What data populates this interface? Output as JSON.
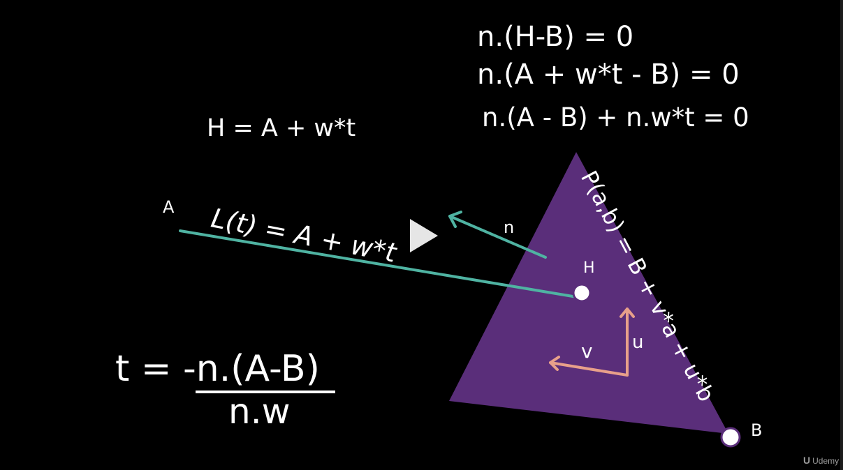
{
  "colors": {
    "background": "#000000",
    "triangle": "#5a2e7a",
    "ray": "#4fb3a2",
    "normal": "#4fb3a2",
    "basis": "#e8a08a",
    "text": "#ffffff"
  },
  "equations": {
    "h_minus_b": "n.(H-B) = 0",
    "a_w_t_b": "n.(A + w*t - B) = 0",
    "expanded": "n.(A - B) + n.w*t = 0",
    "h_def": "H = A + w*t",
    "line": "L(t) = A + w*t",
    "plane": "P(a,b) = B + v*a + u*b",
    "t_numerator": "t = -n.(A-B)",
    "t_denominator": "n.w"
  },
  "labels": {
    "a": "A",
    "n": "n",
    "h": "H",
    "u": "u",
    "v": "v",
    "b": "B"
  },
  "watermark": {
    "logo": "U",
    "text": "Udemy"
  },
  "icons": {
    "play": "play-icon"
  }
}
